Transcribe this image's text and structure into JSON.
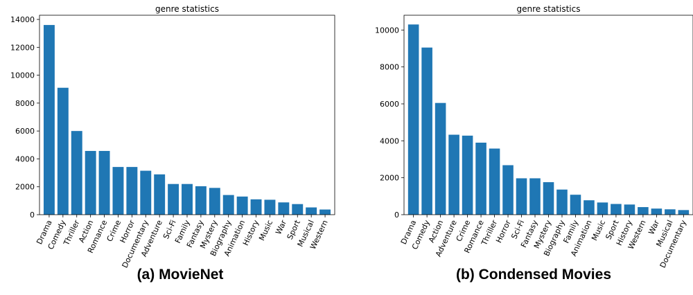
{
  "chart_data": [
    {
      "type": "bar",
      "title": "genre statistics",
      "caption": "(a) MovieNet",
      "categories": [
        "Drama",
        "Comedy",
        "Thriller",
        "Action",
        "Romance",
        "Crime",
        "Horror",
        "Documentary",
        "Adventure",
        "Sci-Fi",
        "Family",
        "Fantasy",
        "Mystery",
        "Biography",
        "Animation",
        "History",
        "Music",
        "War",
        "Sport",
        "Musical",
        "Western"
      ],
      "values": [
        13600,
        9100,
        6000,
        4570,
        4570,
        3420,
        3420,
        3150,
        2890,
        2200,
        2200,
        2040,
        1920,
        1410,
        1300,
        1100,
        1070,
        880,
        760,
        520,
        370
      ],
      "ylim": [
        0,
        14300
      ],
      "yticks": [
        0,
        2000,
        4000,
        6000,
        8000,
        10000,
        12000,
        14000
      ],
      "xlabel": "",
      "ylabel": "",
      "bar_color": "#1f77b4"
    },
    {
      "type": "bar",
      "title": "genre statistics",
      "caption": "(b) Condensed Movies",
      "categories": [
        "Drama",
        "Comedy",
        "Action",
        "Adventure",
        "Crime",
        "Romance",
        "Thriller",
        "Horror",
        "Sci-Fi",
        "Fantasy",
        "Mystery",
        "Biography",
        "Family",
        "Animation",
        "Music",
        "Sport",
        "History",
        "Western",
        "War",
        "Musical",
        "Documentary"
      ],
      "values": [
        10300,
        9050,
        6050,
        4330,
        4280,
        3900,
        3580,
        2680,
        1970,
        1970,
        1760,
        1360,
        1080,
        780,
        660,
        580,
        550,
        410,
        330,
        290,
        250
      ],
      "ylim": [
        0,
        10800
      ],
      "yticks": [
        0,
        2000,
        4000,
        6000,
        8000,
        10000
      ],
      "xlabel": "",
      "ylabel": "",
      "bar_color": "#1f77b4"
    }
  ]
}
